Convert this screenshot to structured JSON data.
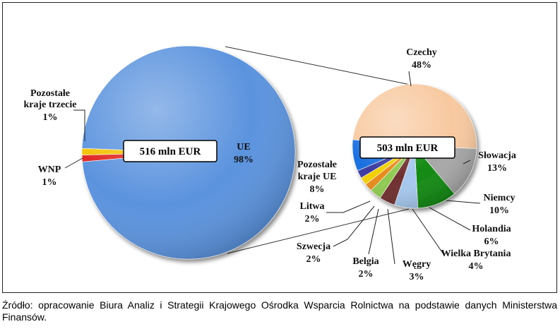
{
  "chart_data": [
    {
      "type": "pie",
      "total_label": "516 mln EUR",
      "categories": [
        "UE",
        "Pozostałe kraje trzecie",
        "WNP"
      ],
      "values": [
        98,
        1,
        1
      ],
      "value_labels": [
        "98%",
        "1%",
        "1%"
      ],
      "colors": [
        "#5b93de",
        "#f2c200",
        "#e0221e"
      ]
    },
    {
      "type": "pie",
      "total_label": "503 mln EUR",
      "categories": [
        "Czechy",
        "Słowacja",
        "Niemcy",
        "Holandia",
        "Wielka Brytania",
        "Węgry",
        "Belgia",
        "Szwecja",
        "Litwa",
        "Pozostałe kraje UE"
      ],
      "values": [
        48,
        13,
        10,
        6,
        4,
        3,
        2,
        2,
        2,
        8
      ],
      "value_labels": [
        "48%",
        "13%",
        "10%",
        "6%",
        "4%",
        "3%",
        "2%",
        "2%",
        "2%",
        "8%"
      ],
      "colors": [
        "#f8c9a0",
        "#a8a8a8",
        "#128a12",
        "#a6c8ee",
        "#6e2e2e",
        "#8fca50",
        "#e88a1a",
        "#f2d000",
        "#3a3aa0",
        "#1a6fe0"
      ]
    }
  ],
  "source_note": "Źródło: opracowanie Biura Analiz i Strategii Krajowego Ośrodka Wsparcia Rolnictwa na podstawie danych Ministerstwa Finansów."
}
